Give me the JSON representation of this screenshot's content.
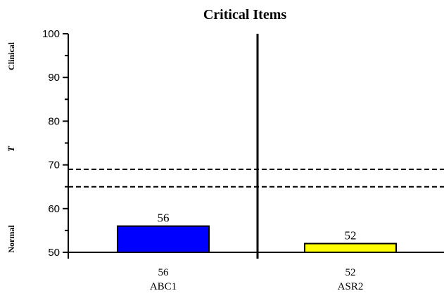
{
  "chart_data": {
    "type": "bar",
    "title": "Critical Items",
    "xlabel": "",
    "ylabel": "T",
    "side_labels": {
      "top": "Clinical",
      "middle": "T",
      "bottom": "Normal"
    },
    "ylim": [
      50,
      100
    ],
    "yticks": [
      50,
      60,
      70,
      80,
      90,
      100
    ],
    "reference_lines": [
      69,
      65
    ],
    "grid": false,
    "categories": [
      "ABC1",
      "ASR2"
    ],
    "values": [
      56,
      52
    ],
    "data_labels": [
      "56",
      "52"
    ],
    "colors": [
      "#0000ff",
      "#ffff00"
    ]
  }
}
